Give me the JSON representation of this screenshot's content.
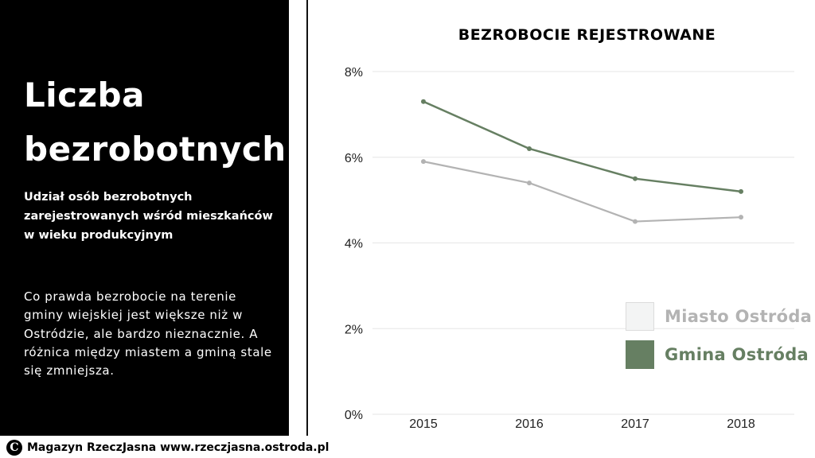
{
  "left_panel": {
    "heading_line1": "Liczba",
    "heading_line2": "bezrobotnych",
    "subheading": "Udział osób bezrobotnych zarejestrowanych wśród mieszkańców w wieku produkcyjnym",
    "body": "Co prawda bezrobocie na terenie gminy wiejskiej jest większe niż w Ostródzie, ale bardzo nieznacznie.  A różnica między miastem a gminą stale się zmniejsza."
  },
  "footer": {
    "logo_letter": "C",
    "text": "Magazyn RzeczJasna www.rzeczjasna.ostroda.pl"
  },
  "colors": {
    "miasto": "#b3b3b3",
    "gmina": "#667f62",
    "miasto_swatch_fill": "#f3f4f4",
    "miasto_swatch_border": "#dcdcdc",
    "grid": "#e6e6e6"
  },
  "chart_data": {
    "type": "line",
    "title": "BEZROBOCIE REJESTROWANE",
    "categories": [
      "2015",
      "2016",
      "2017",
      "2018"
    ],
    "series": [
      {
        "name": "Miasto Ostróda",
        "values": [
          5.9,
          5.4,
          4.5,
          4.6
        ]
      },
      {
        "name": "Gmina Ostróda",
        "values": [
          7.3,
          6.2,
          5.5,
          5.2
        ]
      }
    ],
    "ylim": [
      0,
      8
    ],
    "yticks": [
      0,
      2,
      4,
      6,
      8
    ],
    "ytick_labels": [
      "0%",
      "2%",
      "4%",
      "6%",
      "8%"
    ],
    "grid": true,
    "legend_position": "bottom-right"
  }
}
